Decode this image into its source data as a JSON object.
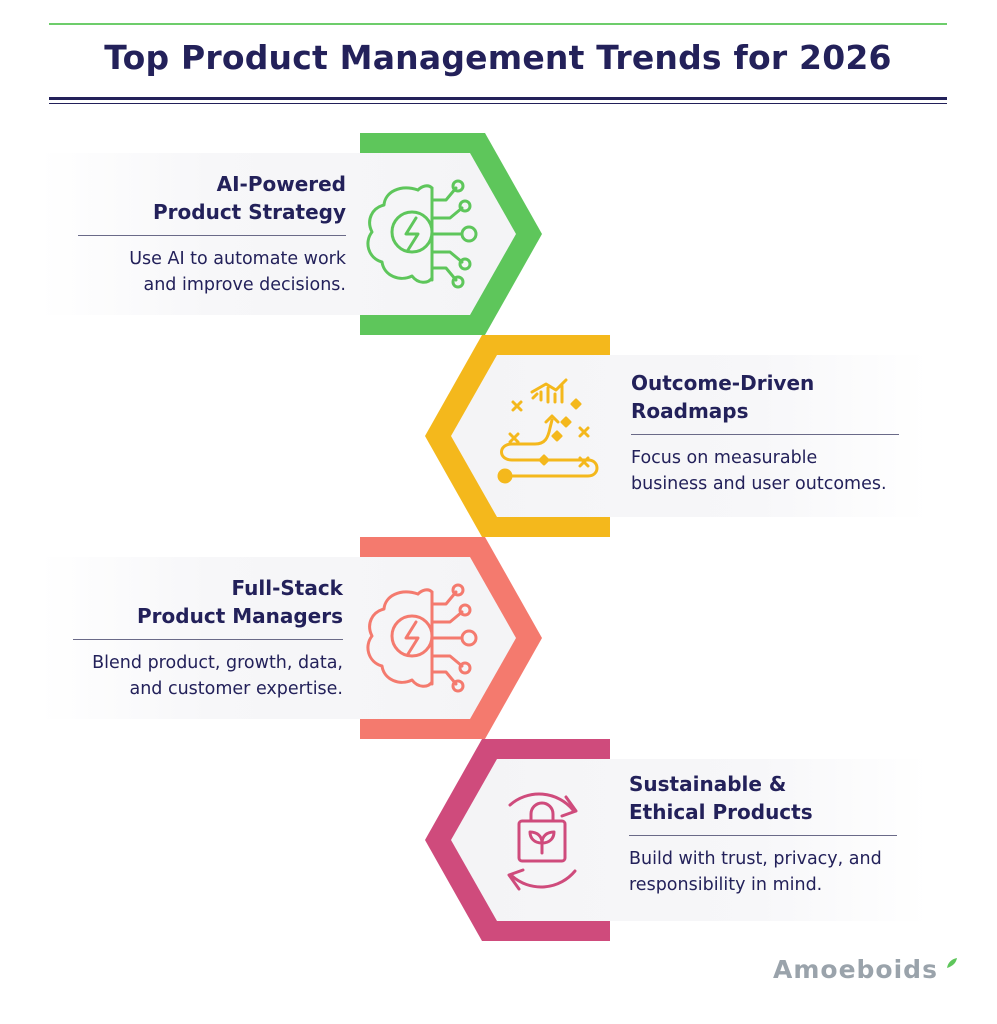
{
  "header": {
    "title": "Top Product Management Trends for 2026"
  },
  "colors": {
    "green": "#5ec65b",
    "yellow": "#f4b81c",
    "coral": "#f47a6e",
    "magenta": "#cf4b7c",
    "navy": "#23215a"
  },
  "trends": [
    {
      "title_line1": "AI-Powered",
      "title_line2": "Product Strategy",
      "desc_line1": "Use AI to automate work",
      "desc_line2": "and improve decisions.",
      "icon": "ai-brain-chip-icon"
    },
    {
      "title_line1": "Outcome-Driven",
      "title_line2": "Roadmaps",
      "desc_line1": "Focus on measurable",
      "desc_line2": "business and user outcomes.",
      "icon": "roadmap-path-chart-icon"
    },
    {
      "title_line1": "Full-Stack",
      "title_line2": "Product Managers",
      "desc_line1": "Blend product, growth, data,",
      "desc_line2": "and customer expertise.",
      "icon": "ai-brain-chip-icon"
    },
    {
      "title_line1": "Sustainable &",
      "title_line2": "Ethical Products",
      "desc_line1": "Build with trust, privacy, and",
      "desc_line2": "responsibility in mind.",
      "icon": "recycle-bag-icon"
    }
  ],
  "brand": {
    "logo_text": "Amoeboids"
  }
}
